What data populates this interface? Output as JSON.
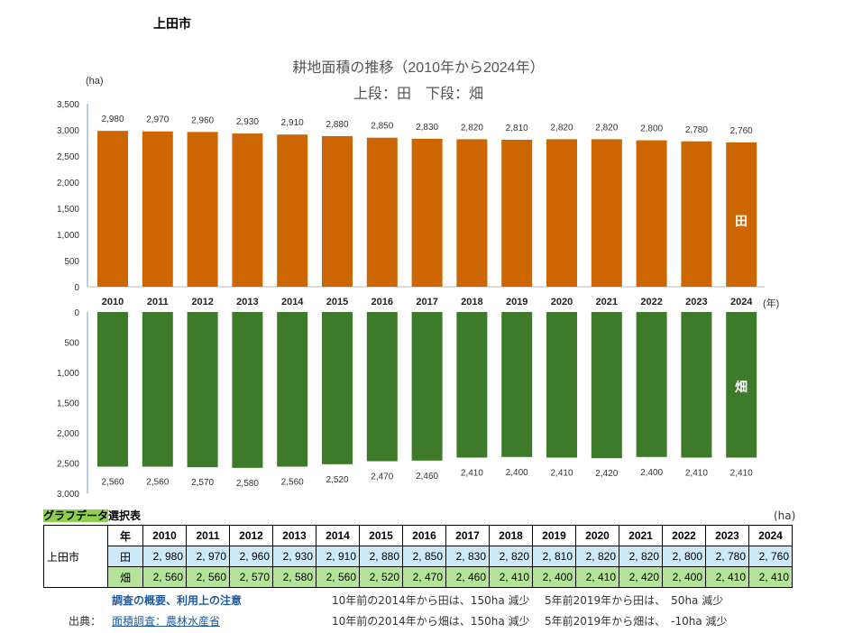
{
  "city": "上田市",
  "chart_data": [
    {
      "type": "bar",
      "title": "耕地面積の推移（2010年から2024年）",
      "subtitle": "上段：田　下段：畑",
      "ylabel": "(ha)",
      "xlabel": "(年)",
      "series_label": "田",
      "categories": [
        "2010",
        "2011",
        "2012",
        "2013",
        "2014",
        "2015",
        "2016",
        "2017",
        "2018",
        "2019",
        "2020",
        "2021",
        "2022",
        "2023",
        "2024"
      ],
      "values": [
        2980,
        2970,
        2960,
        2930,
        2910,
        2880,
        2850,
        2830,
        2820,
        2810,
        2820,
        2820,
        2800,
        2780,
        2760
      ],
      "value_labels": [
        "2,980",
        "2,970",
        "2,960",
        "2,930",
        "2,910",
        "2,880",
        "2,850",
        "2,830",
        "2,820",
        "2,810",
        "2,820",
        "2,820",
        "2,800",
        "2,780",
        "2,760"
      ],
      "ylim": [
        0,
        3500
      ],
      "yticks": [
        "0",
        "500",
        "1,000",
        "1,500",
        "2,000",
        "2,500",
        "3,000",
        "3,500"
      ],
      "color": "#cc6600",
      "grid": false
    },
    {
      "type": "bar",
      "series_label": "畑",
      "inverted": true,
      "values": [
        2560,
        2560,
        2570,
        2580,
        2560,
        2520,
        2470,
        2460,
        2410,
        2400,
        2410,
        2420,
        2400,
        2410,
        2410
      ],
      "value_labels": [
        "2,560",
        "2,560",
        "2,570",
        "2,580",
        "2,560",
        "2,520",
        "2,470",
        "2,460",
        "2,410",
        "2,400",
        "2,410",
        "2,420",
        "2,400",
        "2,410",
        "2,410"
      ],
      "ylim": [
        0,
        3000
      ],
      "yticks": [
        "0",
        "500",
        "1,000",
        "1,500",
        "2,000",
        "2,500",
        "3,000"
      ],
      "color": "#3d7a2a",
      "grid": false
    }
  ],
  "table": {
    "title_hl": "グラフデータ",
    "title_rest": "選択表",
    "unit": "(ha)",
    "city": "上田市",
    "year_label": "年",
    "years": [
      "2010",
      "2011",
      "2012",
      "2013",
      "2014",
      "2015",
      "2016",
      "2017",
      "2018",
      "2019",
      "2020",
      "2021",
      "2022",
      "2023",
      "2024"
    ],
    "rows": [
      {
        "label": "田",
        "values": [
          "2, 980",
          "2, 970",
          "2, 960",
          "2, 930",
          "2, 910",
          "2, 880",
          "2, 850",
          "2, 830",
          "2, 820",
          "2, 810",
          "2, 820",
          "2, 820",
          "2, 800",
          "2, 780",
          "2, 760"
        ]
      },
      {
        "label": "畑",
        "values": [
          "2, 560",
          "2, 560",
          "2, 570",
          "2, 580",
          "2, 560",
          "2, 520",
          "2, 470",
          "2, 460",
          "2, 410",
          "2, 400",
          "2, 410",
          "2, 420",
          "2, 400",
          "2, 410",
          "2, 410"
        ]
      }
    ]
  },
  "notes": {
    "survey_link": "調査の概要、利用上の注意",
    "source_label": "出典：",
    "source_link": "面積調査：農林水産省",
    "ta10": "10年前の2014年から田は、150ha 減少",
    "ta5": "5年前2019年から田は、　50ha 減少",
    "ha10": "10年前の2014年から畑は、150ha 減少",
    "ha5": "5年前2019年から畑は、　-10ha 減少"
  }
}
